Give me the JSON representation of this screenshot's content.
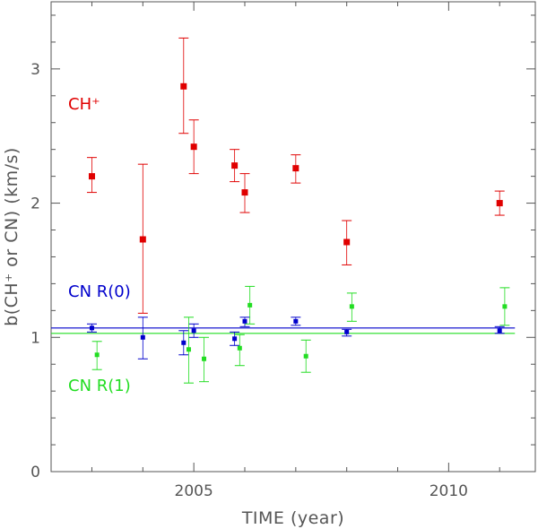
{
  "chart_data": {
    "type": "scatter",
    "xlabel": "TIME (year)",
    "ylabel": "b(CH⁺ or CN) (km/s)",
    "xlim": [
      2002.2,
      2011.7
    ],
    "ylim": [
      0,
      3.5
    ],
    "xticks": [
      2005,
      2010
    ],
    "xtick_labels": [
      "2005",
      "2010"
    ],
    "yticks": [
      0,
      1,
      2,
      3
    ],
    "ytick_labels": [
      "0",
      "1",
      "2",
      "3"
    ],
    "grid": false,
    "series": [
      {
        "name": "CH⁺",
        "color": "#e00000",
        "x": [
          2003.0,
          2004.0,
          2004.8,
          2005.0,
          2005.8,
          2006.0,
          2007.0,
          2008.0,
          2011.0
        ],
        "y": [
          2.2,
          1.73,
          2.87,
          2.42,
          2.28,
          2.08,
          2.26,
          1.71,
          2.0
        ],
        "err_low": [
          2.08,
          1.18,
          2.52,
          2.22,
          2.16,
          1.93,
          2.15,
          1.54,
          1.91
        ],
        "err_high": [
          2.34,
          2.29,
          3.23,
          2.62,
          2.4,
          2.22,
          2.36,
          1.87,
          2.09
        ]
      },
      {
        "name": "CN R(0)",
        "color": "#0000cc",
        "x": [
          2003.0,
          2004.0,
          2004.8,
          2005.0,
          2005.8,
          2006.0,
          2007.0,
          2008.0,
          2011.0
        ],
        "y": [
          1.07,
          1.0,
          0.96,
          1.05,
          0.99,
          1.12,
          1.12,
          1.04,
          1.05
        ],
        "err_low": [
          1.04,
          0.84,
          0.87,
          1.0,
          0.94,
          1.08,
          1.09,
          1.01,
          1.03
        ],
        "err_high": [
          1.1,
          1.15,
          1.05,
          1.1,
          1.04,
          1.15,
          1.15,
          1.06,
          1.08
        ],
        "mean_line": 1.07
      },
      {
        "name": "CN R(1)",
        "color": "#22dd22",
        "x": [
          2003.1,
          2004.9,
          2005.2,
          2005.9,
          2006.1,
          2007.2,
          2008.1,
          2011.1
        ],
        "y": [
          0.87,
          0.91,
          0.84,
          0.92,
          1.24,
          0.86,
          1.23,
          1.23
        ],
        "err_low": [
          0.76,
          0.66,
          0.67,
          0.79,
          1.1,
          0.74,
          1.12,
          1.09
        ],
        "err_high": [
          0.97,
          1.15,
          1.0,
          1.02,
          1.38,
          0.98,
          1.33,
          1.37
        ],
        "mean_line": 1.03
      }
    ],
    "annotations": [
      {
        "text": "CH⁺",
        "color": "#e00000"
      },
      {
        "text": "CN R(0)",
        "color": "#0000cc"
      },
      {
        "text": "CN R(1)",
        "color": "#22dd22"
      }
    ]
  }
}
